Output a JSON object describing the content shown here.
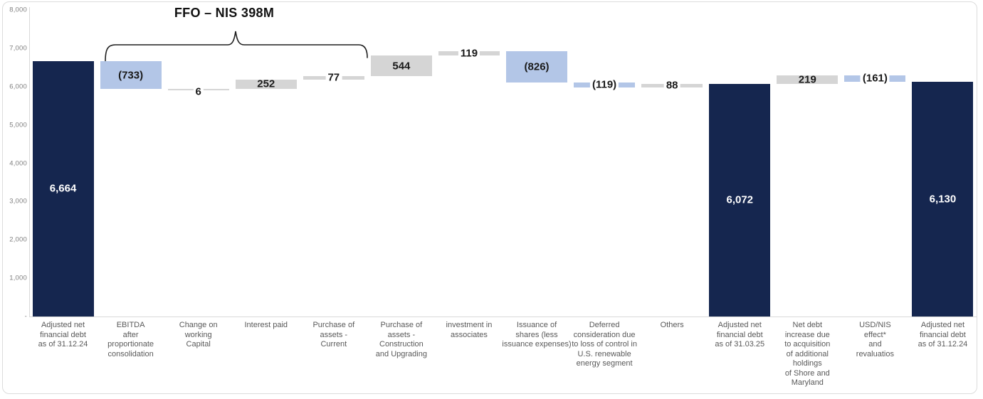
{
  "chart_data": {
    "type": "waterfall",
    "title": "",
    "annotation": {
      "label": "FFO – NIS 398M",
      "from_column": 1,
      "to_column": 4,
      "sum": -398
    },
    "ylim": [
      0,
      8000
    ],
    "grid": false,
    "yticks": [
      {
        "value": 0,
        "label": "-"
      },
      {
        "value": 1000,
        "label": "1,000"
      },
      {
        "value": 2000,
        "label": "2,000"
      },
      {
        "value": 3000,
        "label": "3,000"
      },
      {
        "value": 4000,
        "label": "4,000"
      },
      {
        "value": 5000,
        "label": "5,000"
      },
      {
        "value": 6000,
        "label": "6,000"
      },
      {
        "value": 7000,
        "label": "7,000"
      },
      {
        "value": 8000,
        "label": "8,000"
      }
    ],
    "colors": {
      "total": "#15264F",
      "increase": "#D5D5D5",
      "decrease": "#B3C6E7",
      "label_dark": "#1a1a1a",
      "label_light": "#ffffff",
      "axis": "#d9d9d9",
      "category_text": "#595959"
    },
    "columns": [
      {
        "category": "Adjusted net\nfinancial debt\nas of 31.12.24",
        "label": "6,664",
        "value": 6664,
        "kind": "total",
        "placement": "inside"
      },
      {
        "category": "EBITDA\nafter\nproportionate\nconsolidation",
        "label": "(733)",
        "value": -733,
        "kind": "change",
        "placement": "inside"
      },
      {
        "category": "Change on\nworking\nCapital",
        "label": "6",
        "value": 6,
        "kind": "change",
        "placement": "below"
      },
      {
        "category": "Interest paid",
        "label": "252",
        "value": 252,
        "kind": "change",
        "placement": "inside"
      },
      {
        "category": "Purchase of\nassets -\nCurrent",
        "label": "77",
        "value": 77,
        "kind": "change",
        "placement": "boxed"
      },
      {
        "category": "Purchase of\nassets -\nConstruction\nand Upgrading",
        "label": "544",
        "value": 544,
        "kind": "change",
        "placement": "inside"
      },
      {
        "category": "investment in\nassociates",
        "label": "119",
        "value": 119,
        "kind": "change",
        "placement": "boxed"
      },
      {
        "category": "Issuance of\nshares (less\nissuance expenses)",
        "label": "(826)",
        "value": -826,
        "kind": "change",
        "placement": "inside"
      },
      {
        "category": "Deferred\nconsideration due\nto loss of control in\nU.S. renewable\nenergy segment",
        "label": "(119)",
        "value": -119,
        "kind": "change",
        "placement": "boxed"
      },
      {
        "category": "Others",
        "label": "88",
        "value": 88,
        "kind": "change",
        "placement": "boxed"
      },
      {
        "category": "Adjusted net\nfinancial debt\nas of 31.03.25",
        "label": "6,072",
        "value": 6072,
        "kind": "total",
        "placement": "inside"
      },
      {
        "category": "Net debt\nincrease due\nto acquisition\nof additional\nholdings\nof Shore and\nMaryland",
        "label": "219",
        "value": 219,
        "kind": "change",
        "placement": "inside"
      },
      {
        "category": "USD/NIS\neffect*\nand\nrevaluatios",
        "label": "(161)",
        "value": -161,
        "kind": "change",
        "placement": "boxed"
      },
      {
        "category": "Adjusted net\nfinancial debt\nas of 31.12.24",
        "label": "6,130",
        "value": 6130,
        "kind": "total",
        "placement": "inside"
      }
    ]
  }
}
